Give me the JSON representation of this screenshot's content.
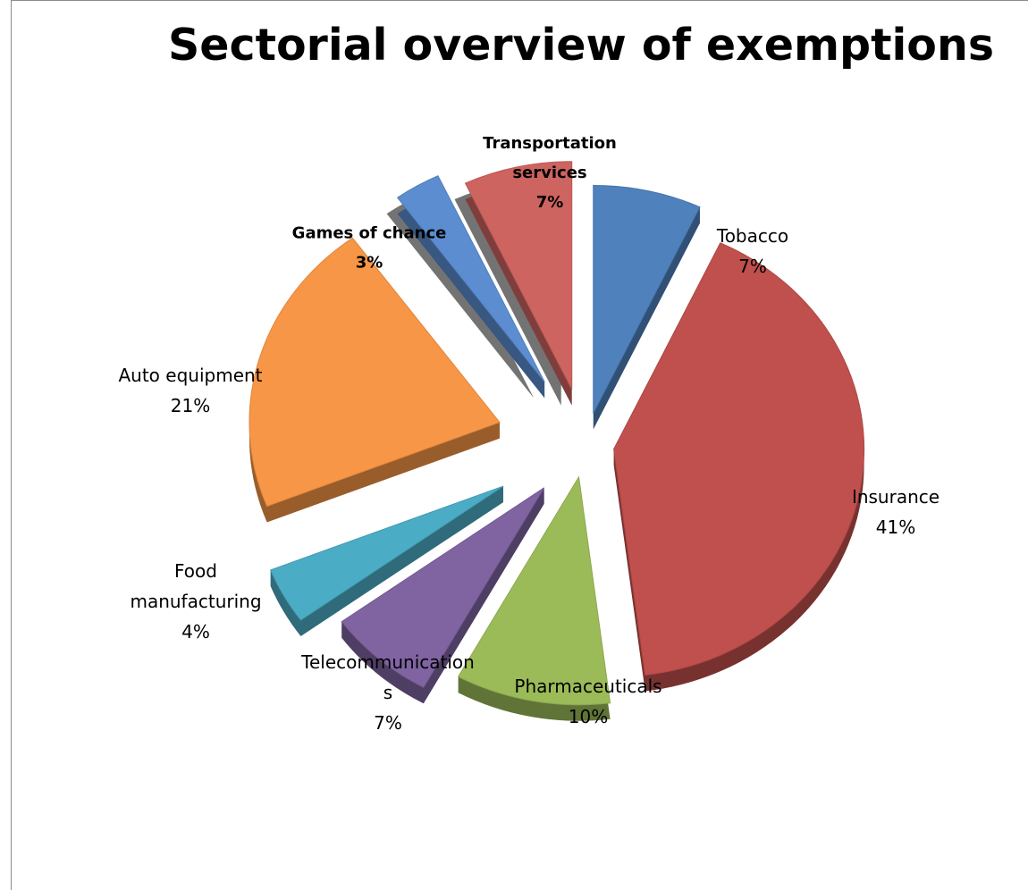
{
  "chart_data": {
    "type": "pie",
    "title": "Sectorial overview of exemptions",
    "style": "3D exploded pie",
    "slices": [
      {
        "label": "Tobacco",
        "value": 7,
        "pct_label": "7%",
        "color": "#4f81bd",
        "bold": false
      },
      {
        "label": "Insurance",
        "value": 41,
        "pct_label": "41%",
        "color": "#c0504d",
        "bold": false
      },
      {
        "label": "Pharmaceuticals",
        "value": 10,
        "pct_label": "10%",
        "color": "#9bbb59",
        "bold": false
      },
      {
        "label": "Telecommunications",
        "label_lines": [
          "Telecommunication",
          "s"
        ],
        "value": 7,
        "pct_label": "7%",
        "color": "#8064a2",
        "bold": false
      },
      {
        "label": "Food manufacturing",
        "label_lines": [
          "Food",
          "manufacturing"
        ],
        "value": 4,
        "pct_label": "4%",
        "color": "#4bacc6",
        "bold": false
      },
      {
        "label": "Auto equipment",
        "value": 21,
        "pct_label": "21%",
        "color": "#f79646",
        "bold": false
      },
      {
        "label": "Games of chance",
        "value": 3,
        "pct_label": "3%",
        "color": "#5b8dd0",
        "bold": true
      },
      {
        "label": "Transportation services",
        "label_lines": [
          "Transportation",
          "services"
        ],
        "value": 7,
        "pct_label": "7%",
        "color": "#cd6460",
        "bold": true
      }
    ]
  }
}
